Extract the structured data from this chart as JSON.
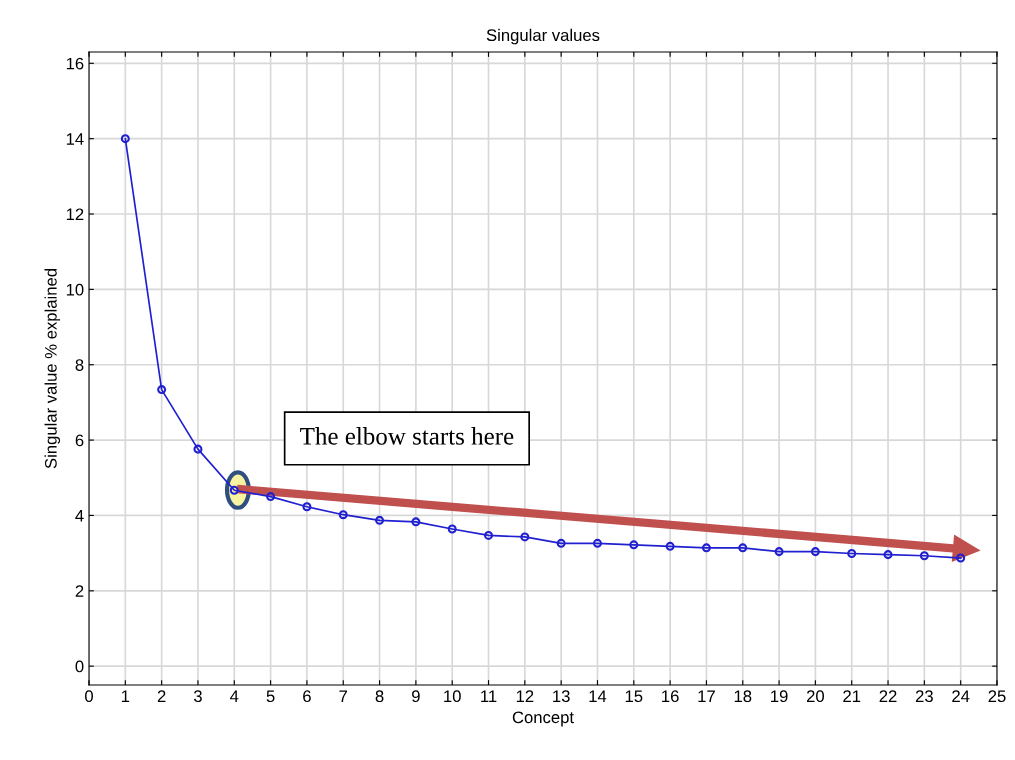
{
  "chart_data": {
    "type": "line",
    "title": "Singular values",
    "xlabel": "Concept",
    "ylabel": "Singular value % explained",
    "x": [
      1,
      2,
      3,
      4,
      5,
      6,
      7,
      8,
      9,
      10,
      11,
      12,
      13,
      14,
      15,
      16,
      17,
      18,
      19,
      20,
      21,
      22,
      23,
      24
    ],
    "series": [
      {
        "color": "#2020d0",
        "values": [
          14.0,
          7.34,
          5.76,
          4.67,
          4.5,
          4.23,
          4.02,
          3.87,
          3.83,
          3.64,
          3.47,
          3.43,
          3.26,
          3.26,
          3.22,
          3.18,
          3.14,
          3.14,
          3.04,
          3.04,
          2.99,
          2.96,
          2.93,
          2.87
        ]
      }
    ],
    "xlim": [
      0,
      25
    ],
    "xticks": [
      0,
      1,
      2,
      3,
      4,
      5,
      6,
      7,
      8,
      9,
      10,
      11,
      12,
      13,
      14,
      15,
      16,
      17,
      18,
      19,
      20,
      21,
      22,
      23,
      24,
      25
    ],
    "ylim": [
      -0.5,
      16.3
    ],
    "yticks": [
      0,
      2,
      4,
      6,
      8,
      10,
      12,
      14,
      16
    ],
    "grid": true,
    "marker": "circle",
    "line_style": "solid",
    "annotations": [
      "The elbow starts here"
    ]
  }
}
